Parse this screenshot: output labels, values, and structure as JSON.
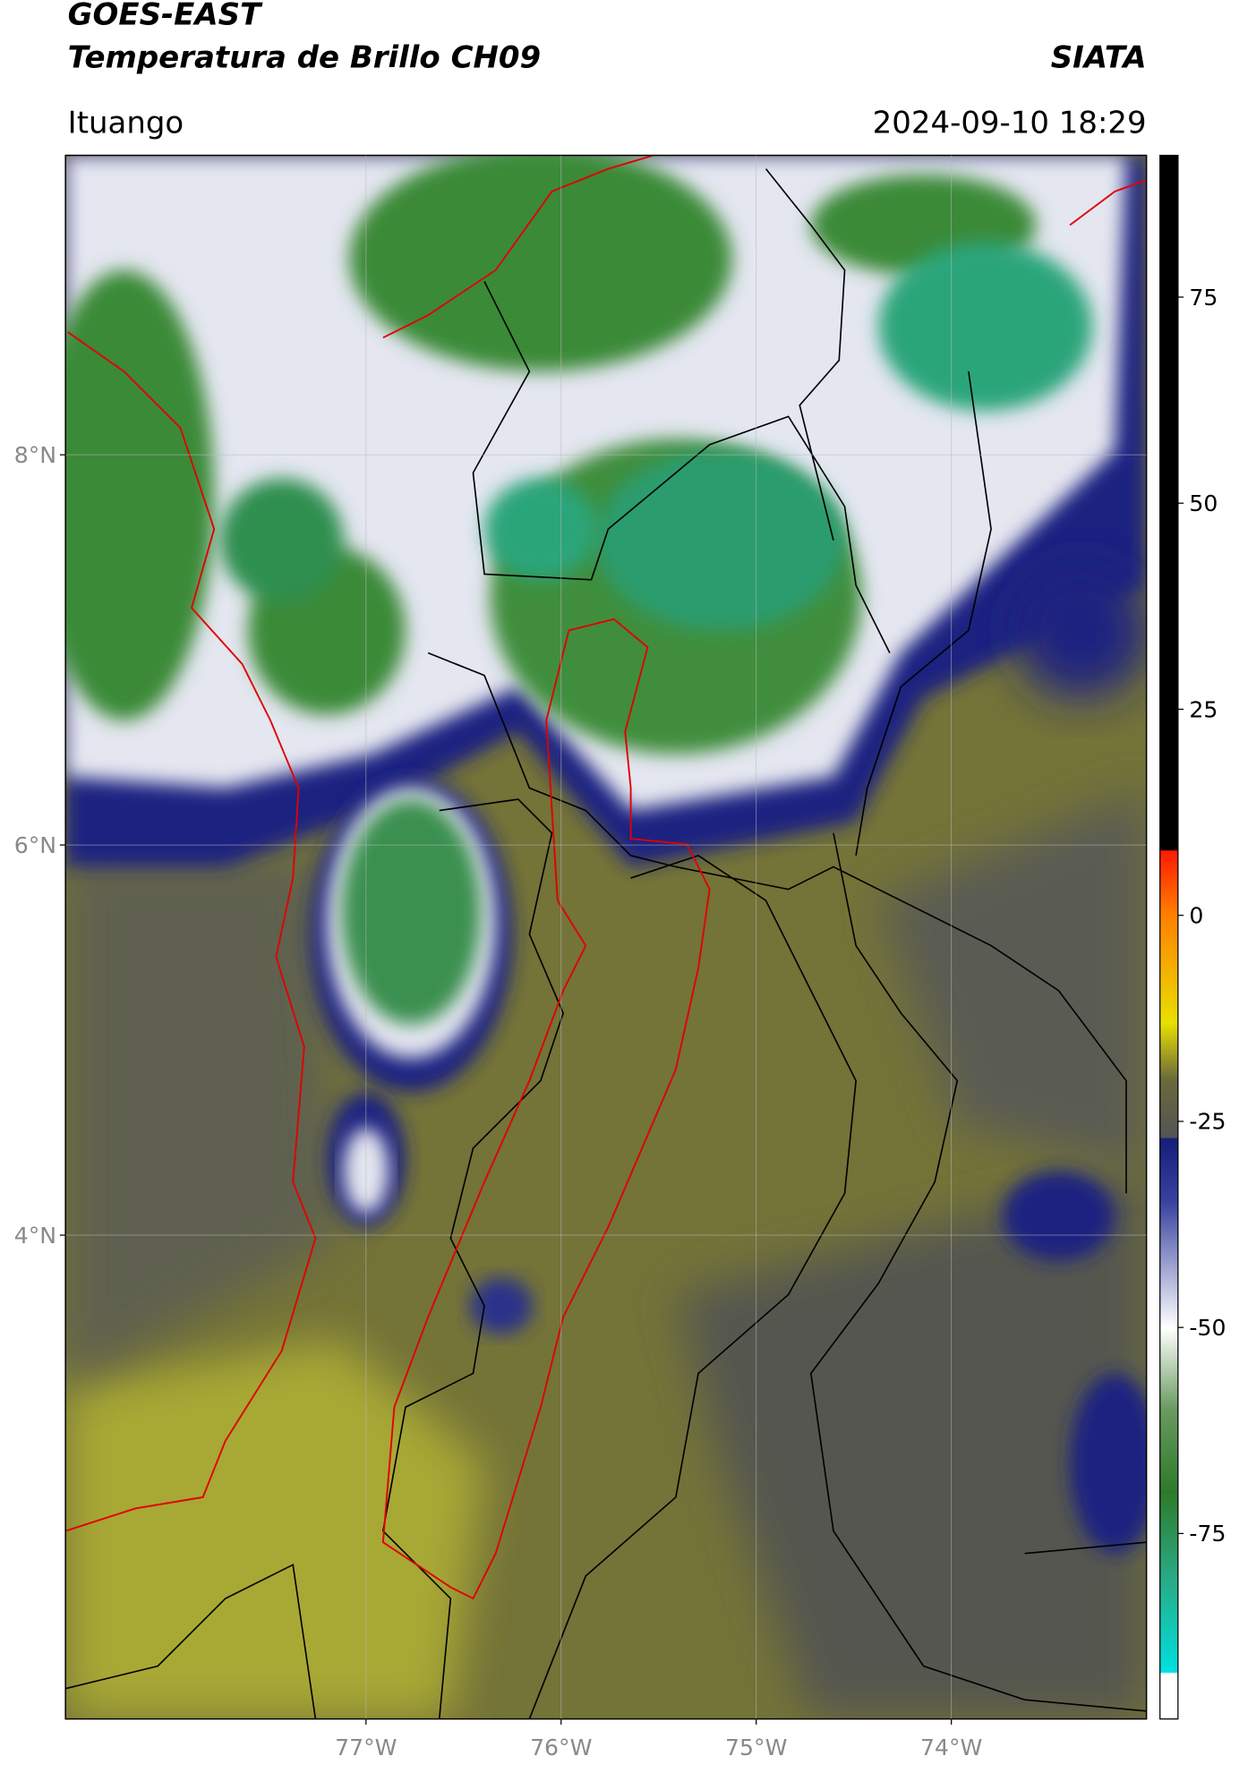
{
  "header": {
    "title": "GOES-EAST",
    "subtitle": "Temperatura de Brillo CH09",
    "source": "SIATA",
    "location": "Ituango",
    "datetime": "2024-09-10 18:29"
  },
  "chart_data": {
    "type": "map",
    "xlim": [
      -78.54,
      -73.0
    ],
    "ylim": [
      1.52,
      9.535
    ],
    "xticks": [
      {
        "value": -77,
        "label": "77°W"
      },
      {
        "value": -76,
        "label": "76°W"
      },
      {
        "value": -75,
        "label": "75°W"
      },
      {
        "value": -74,
        "label": "74°W"
      }
    ],
    "yticks": [
      {
        "value": 8,
        "label": "8°N"
      },
      {
        "value": 6,
        "label": "6°N"
      },
      {
        "value": 4,
        "label": "4°N"
      }
    ],
    "grid": true,
    "colorbar": {
      "lim": [
        -97.5,
        92.2
      ],
      "ticks": [
        75,
        50,
        25,
        0,
        -25,
        -50,
        -75
      ]
    }
  }
}
